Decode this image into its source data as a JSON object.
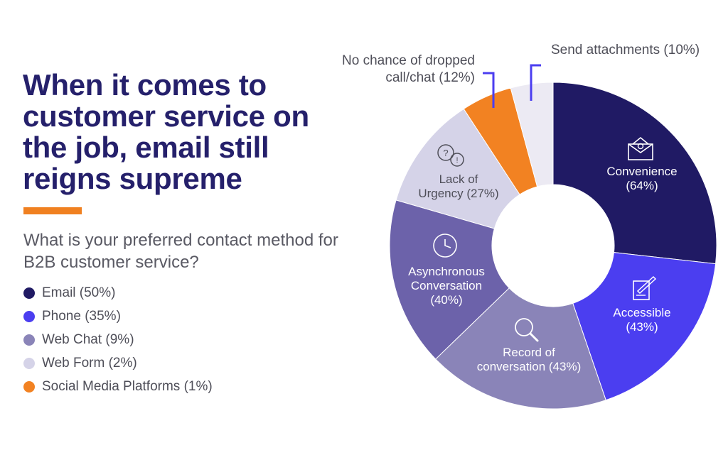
{
  "headline": "When it comes to customer service on the job, email still reigns supreme",
  "question": "What is your preferred contact method for B2B customer service?",
  "legend": [
    {
      "label": "Email (50%)",
      "color": "#201a64"
    },
    {
      "label": "Phone (35%)",
      "color": "#4b3ef0"
    },
    {
      "label": "Web Chat (9%)",
      "color": "#8a84b8"
    },
    {
      "label": "Web Form (2%)",
      "color": "#d5d3e8"
    },
    {
      "label": "Social Media Platforms (1%)",
      "color": "#f28222"
    }
  ],
  "colors": {
    "title": "#25206b",
    "accent": "#f08020",
    "callout_line": "#4b3ef0"
  },
  "chart_data": {
    "type": "pie",
    "variant": "donut",
    "slices": [
      {
        "label_lines": [
          "Convenience",
          "(64%)"
        ],
        "value": 64,
        "color": "#201a64",
        "text_color": "#ffffff",
        "icon": "envelope-icon"
      },
      {
        "label_lines": [
          "Accessible",
          "(43%)"
        ],
        "value": 43,
        "color": "#4b3ef0",
        "text_color": "#ffffff",
        "icon": "edit-note-icon"
      },
      {
        "label_lines": [
          "Record of",
          "conversation (43%)"
        ],
        "value": 43,
        "color": "#8a84b8",
        "text_color": "#ffffff",
        "icon": "magnifier-icon"
      },
      {
        "label_lines": [
          "Asynchronous",
          "Conversation",
          "(40%)"
        ],
        "value": 40,
        "color": "#6c62aa",
        "text_color": "#ffffff",
        "icon": "clock-icon"
      },
      {
        "label_lines": [
          "Lack of",
          "Urgency (27%)"
        ],
        "value": 27,
        "color": "#d5d3e8",
        "text_color": "#4e4e58",
        "icon": "question-bubbles-icon"
      },
      {
        "label_lines": [
          "No chance of dropped",
          "call/chat (12%)"
        ],
        "value": 12,
        "color": "#f28222",
        "text_color": "#4e4e58",
        "callout": true
      },
      {
        "label_lines": [
          "Send attachments (10%)"
        ],
        "value": 10,
        "color": "#eceaf3",
        "text_color": "#4e4e58",
        "callout": true
      }
    ]
  }
}
